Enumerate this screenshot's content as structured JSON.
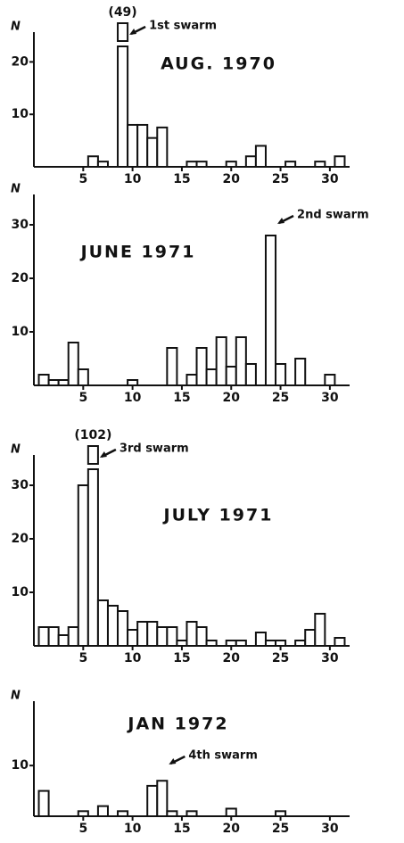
{
  "chart_data": [
    {
      "type": "bar",
      "title": "AUG. 1970",
      "y_label": "N",
      "x": [
        6,
        7,
        9,
        10,
        11,
        12,
        13,
        16,
        17,
        20,
        22,
        23,
        26,
        29,
        31
      ],
      "values": [
        2,
        1,
        49,
        8,
        8,
        5.5,
        7.5,
        1,
        1,
        1,
        2,
        4,
        1,
        1,
        2
      ],
      "value_labels": [
        null,
        null,
        "(49)",
        null,
        null,
        null,
        null,
        null,
        null,
        null,
        null,
        null,
        null,
        null,
        null
      ],
      "annotations": [
        {
          "text": "1st swarm",
          "x": 9
        }
      ],
      "xlim": [
        0,
        32
      ],
      "xticks": [
        5,
        10,
        15,
        20,
        25,
        30
      ],
      "ylim": [
        0,
        25
      ],
      "yticks": [
        10,
        20
      ],
      "color": "#ffffff"
    },
    {
      "type": "bar",
      "title": "JUNE 1971",
      "y_label": "N",
      "x": [
        1,
        2,
        3,
        4,
        5,
        10,
        14,
        16,
        17,
        18,
        19,
        20,
        21,
        22,
        24,
        25,
        27,
        30
      ],
      "values": [
        2,
        1,
        1,
        8,
        3,
        1,
        7,
        2,
        7,
        3,
        9,
        3.5,
        9,
        4,
        28,
        4,
        5,
        2
      ],
      "annotations": [
        {
          "text": "2nd swarm",
          "x": 24
        }
      ],
      "xlim": [
        0,
        32
      ],
      "xticks": [
        5,
        10,
        15,
        20,
        25,
        30
      ],
      "ylim": [
        0,
        35
      ],
      "yticks": [
        10,
        20,
        30
      ],
      "color": "#ffffff"
    },
    {
      "type": "bar",
      "title": "JULY 1971",
      "y_label": "N",
      "x": [
        1,
        2,
        3,
        4,
        5,
        6,
        7,
        8,
        9,
        10,
        11,
        12,
        13,
        14,
        15,
        16,
        17,
        18,
        20,
        21,
        23,
        24,
        25,
        27,
        28,
        29,
        31
      ],
      "values": [
        3.5,
        3.5,
        2,
        3.5,
        30,
        102,
        8.5,
        7.5,
        6.5,
        3,
        4.5,
        4.5,
        3.5,
        3.5,
        1,
        4.5,
        3.5,
        1,
        1,
        1,
        2.5,
        1,
        1,
        1,
        3,
        6,
        1.5
      ],
      "value_labels": [
        null,
        null,
        null,
        null,
        null,
        "(102)",
        null,
        null,
        null,
        null,
        null,
        null,
        null,
        null,
        null,
        null,
        null,
        null,
        null,
        null,
        null,
        null,
        null,
        null,
        null,
        null,
        null
      ],
      "annotations": [
        {
          "text": "3rd swarm",
          "x": 6
        }
      ],
      "xlim": [
        0,
        32
      ],
      "xticks": [
        5,
        10,
        15,
        20,
        25,
        30
      ],
      "ylim": [
        0,
        35
      ],
      "yticks": [
        10,
        20,
        30
      ],
      "color": "#ffffff"
    },
    {
      "type": "bar",
      "title": "JAN 1972",
      "y_label": "N",
      "x": [
        1,
        5,
        7,
        9,
        12,
        13,
        14,
        16,
        20,
        25
      ],
      "values": [
        5,
        1,
        2,
        1,
        6,
        7,
        1,
        1,
        1.5,
        1
      ],
      "annotations": [
        {
          "text": "4th swarm",
          "x": 13
        }
      ],
      "xlim": [
        0,
        32
      ],
      "xticks": [
        5,
        10,
        15,
        20,
        25,
        30
      ],
      "ylim": [
        0,
        22
      ],
      "yticks": [
        10
      ],
      "color": "#ffffff"
    }
  ]
}
